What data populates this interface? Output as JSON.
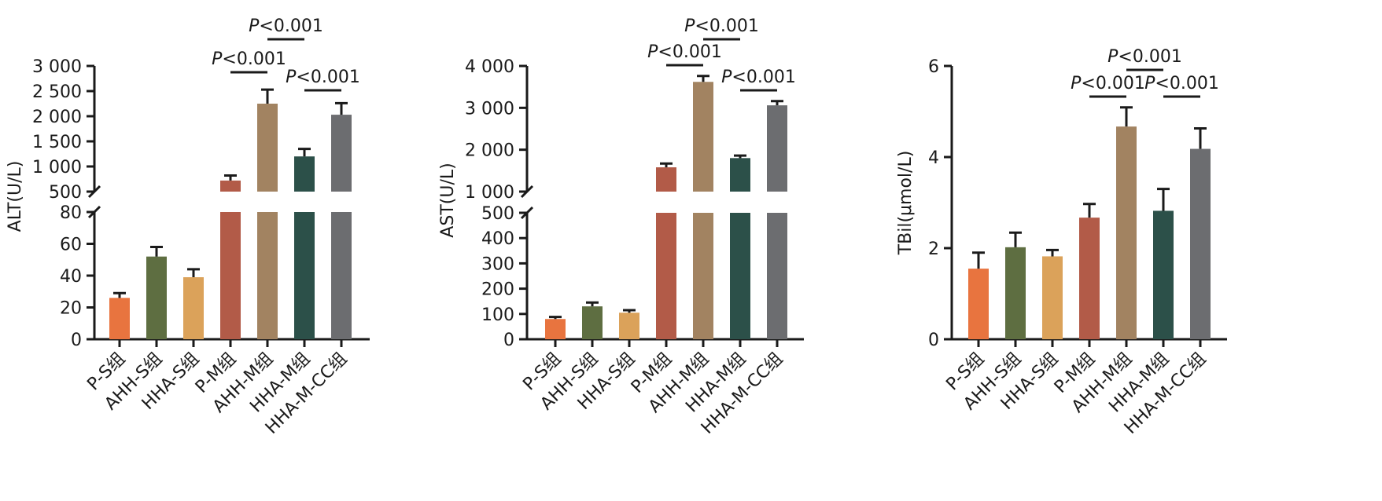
{
  "colors": {
    "P-S组": "#E8743F",
    "AHH-S组": "#5E6E41",
    "HHA-S组": "#DBA25A",
    "P-M组": "#B25B48",
    "AHH-M组": "#A28361",
    "HHA-M组": "#2C5049",
    "HHA-M-CC组": "#6C6D70"
  },
  "chart_data": [
    {
      "type": "bar",
      "ylabel": "ALT(U/L)",
      "categories": [
        "P-S组",
        "AHH-S组",
        "HHA-S组",
        "P-M组",
        "AHH-M组",
        "HHA-M组",
        "HHA-M-CC组"
      ],
      "values": [
        26,
        52,
        39,
        720,
        2250,
        1200,
        2030
      ],
      "errors": [
        3,
        6,
        5,
        100,
        280,
        150,
        230
      ],
      "axis_break": {
        "lower": [
          0,
          80
        ],
        "upper": [
          500,
          3000
        ]
      },
      "yticks_lower": [
        0,
        20,
        40,
        60,
        80
      ],
      "yticks_upper": [
        500,
        1000,
        1500,
        2000,
        2500,
        3000
      ],
      "ytick_labels_lower": [
        "0",
        "20",
        "40",
        "60",
        "80"
      ],
      "ytick_labels_upper": [
        "500",
        "1 000",
        "1 500",
        "2 000",
        "2 500",
        "3 000"
      ],
      "significance": [
        {
          "from": 3,
          "to": 4,
          "p_letter": "P",
          "p_rest": "<0.001"
        },
        {
          "from": 4,
          "to": 5,
          "p_letter": "P",
          "p_rest": "<0.001"
        },
        {
          "from": 5,
          "to": 6,
          "p_letter": "P",
          "p_rest": "<0.001"
        }
      ]
    },
    {
      "type": "bar",
      "ylabel": "AST(U/L)",
      "categories": [
        "P-S组",
        "AHH-S组",
        "HHA-S组",
        "P-M组",
        "AHH-M组",
        "HHA-M组",
        "HHA-M-CC组"
      ],
      "values": [
        80,
        130,
        105,
        1580,
        3620,
        1800,
        3060
      ],
      "errors": [
        8,
        15,
        10,
        90,
        140,
        60,
        100
      ],
      "axis_break": {
        "lower": [
          0,
          500
        ],
        "upper": [
          1000,
          4000
        ]
      },
      "yticks_lower": [
        0,
        100,
        200,
        300,
        400,
        500
      ],
      "yticks_upper": [
        1000,
        2000,
        3000,
        4000
      ],
      "ytick_labels_lower": [
        "0",
        "100",
        "200",
        "300",
        "400",
        "500"
      ],
      "ytick_labels_upper": [
        "1 000",
        "2 000",
        "3 000",
        "4 000"
      ],
      "significance": [
        {
          "from": 3,
          "to": 4,
          "p_letter": "P",
          "p_rest": "<0.001"
        },
        {
          "from": 4,
          "to": 5,
          "p_letter": "P",
          "p_rest": "<0.001"
        },
        {
          "from": 5,
          "to": 6,
          "p_letter": "P",
          "p_rest": "<0.001"
        }
      ]
    },
    {
      "type": "bar",
      "ylabel": "TBil(μmol/L)",
      "categories": [
        "P-S组",
        "AHH-S组",
        "HHA-S组",
        "P-M组",
        "AHH-M组",
        "HHA-M组",
        "HHA-M-CC组"
      ],
      "values": [
        1.55,
        2.02,
        1.82,
        2.67,
        4.67,
        2.82,
        4.18
      ],
      "errors": [
        0.35,
        0.32,
        0.14,
        0.3,
        0.42,
        0.48,
        0.45
      ],
      "ylim": [
        0,
        6
      ],
      "yticks": [
        0,
        2,
        4,
        6
      ],
      "ytick_labels": [
        "0",
        "2",
        "4",
        "6"
      ],
      "significance": [
        {
          "from": 3,
          "to": 4,
          "p_letter": "P",
          "p_rest": "<0.001"
        },
        {
          "from": 4,
          "to": 5,
          "p_letter": "P",
          "p_rest": "<0.001"
        },
        {
          "from": 5,
          "to": 6,
          "p_letter": "P",
          "p_rest": "<0.001"
        }
      ]
    }
  ]
}
